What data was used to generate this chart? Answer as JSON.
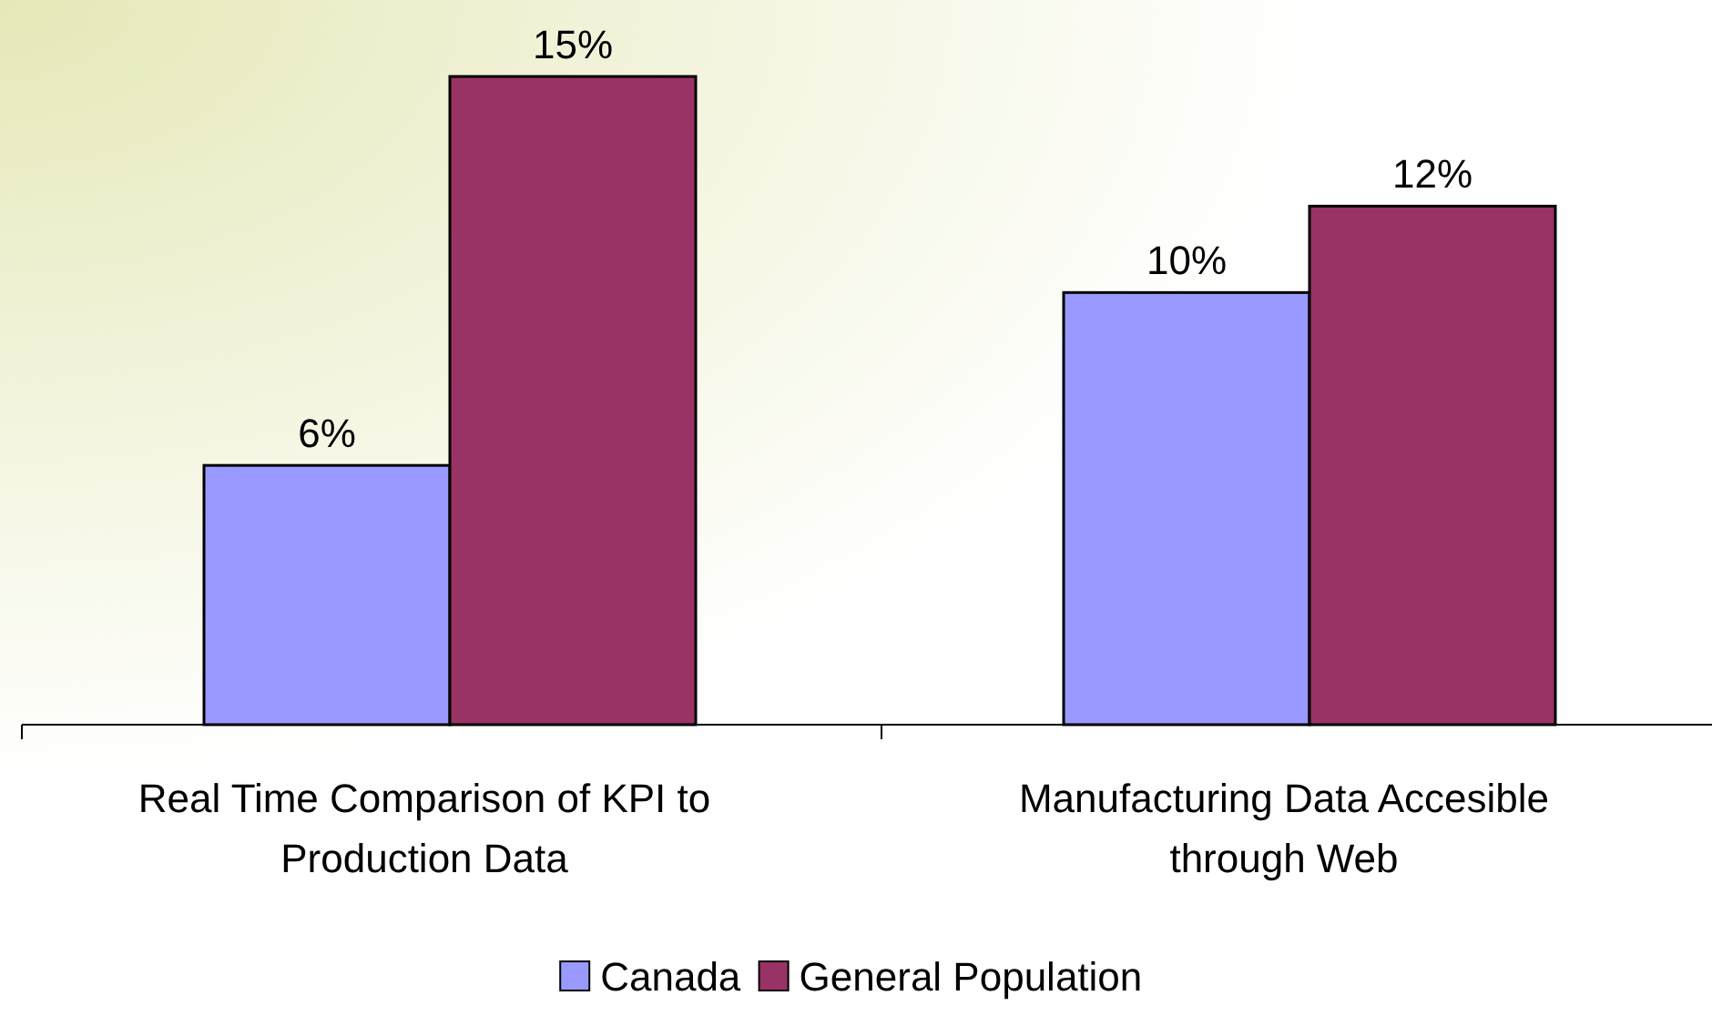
{
  "chart_data": {
    "type": "bar",
    "categories": [
      "Real Time Comparison of KPI to Production Data",
      "Manufacturing Data Accesible through Web"
    ],
    "series": [
      {
        "name": "Canada",
        "color": "#9999ff",
        "values": [
          6,
          10
        ],
        "value_labels": [
          "6%",
          "10%"
        ]
      },
      {
        "name": "General Population",
        "color": "#993366",
        "values": [
          15,
          12
        ],
        "value_labels": [
          "15%",
          "12%"
        ]
      }
    ],
    "legend": "bottom"
  }
}
